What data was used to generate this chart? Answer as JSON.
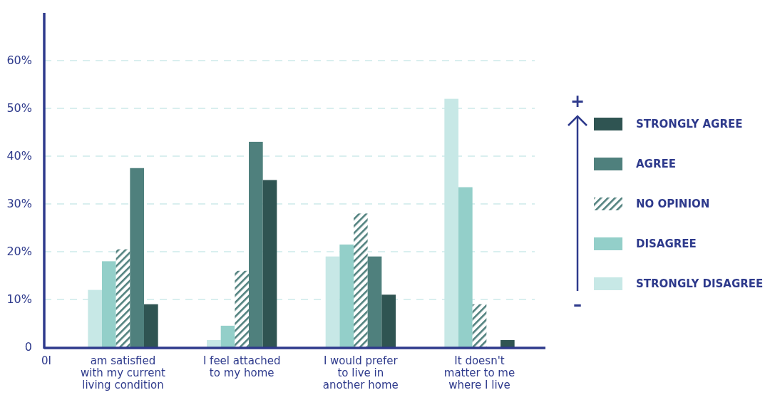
{
  "chart_data": {
    "type": "bar",
    "categories": [
      "am satisfied with my current living condition",
      "I feel attached to my home",
      "I would prefer to live in another home",
      "It doesn't matter to me where I live"
    ],
    "series": [
      {
        "name": "STRONGLY DISAGREE",
        "color": "#c7e8e6",
        "values": [
          12,
          1.5,
          19,
          52
        ]
      },
      {
        "name": "DISAGREE",
        "color": "#93cfc9",
        "values": [
          18,
          4.5,
          21.5,
          33.5
        ]
      },
      {
        "name": "NO OPINION",
        "color": "#4f807d",
        "values": [
          20.5,
          16,
          28,
          9
        ]
      },
      {
        "name": "AGREE",
        "color": "#4f807d",
        "values": [
          37.5,
          43,
          19,
          0
        ]
      },
      {
        "name": "STRONGLY AGREE",
        "color": "#2f5452",
        "values": [
          9,
          35,
          11,
          1.5
        ]
      }
    ],
    "ylim": [
      0,
      70
    ],
    "yticks": [
      0,
      {
        "value": 10,
        "label": "10%"
      },
      {
        "value": 20,
        "label": "20%"
      },
      {
        "value": 30,
        "label": "30%"
      },
      {
        "value": 40,
        "label": "40%"
      },
      {
        "value": 50,
        "label": "50%"
      },
      {
        "value": 60,
        "label": "60%"
      }
    ],
    "grid": "y",
    "legend": "right",
    "annotations": [
      "0I",
      "+",
      "–"
    ]
  }
}
